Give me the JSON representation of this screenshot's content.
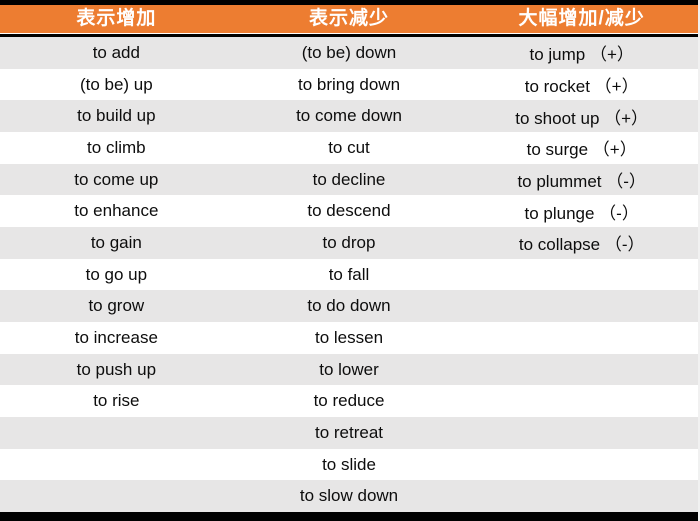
{
  "table": {
    "columns": [
      "表示增加",
      "表示减少",
      "大幅增加/减少"
    ],
    "rows": [
      [
        "to add",
        "(to be) down",
        "to jump （+）"
      ],
      [
        "(to be) up",
        "to bring down",
        "to rocket （+）"
      ],
      [
        "to build up",
        "to come down",
        "to shoot up （+）"
      ],
      [
        "to climb",
        "to cut",
        "to surge （+）"
      ],
      [
        "to come up",
        "to decline",
        "to plummet （-）"
      ],
      [
        "to enhance",
        "to descend",
        "to plunge （-）"
      ],
      [
        "to gain",
        "to drop",
        "to collapse （-）"
      ],
      [
        "to go up",
        "to fall",
        ""
      ],
      [
        "to grow",
        "to do down",
        ""
      ],
      [
        "to increase",
        "to lessen",
        ""
      ],
      [
        "to push up",
        "to lower",
        ""
      ],
      [
        "to rise",
        "to reduce",
        ""
      ],
      [
        "",
        "to retreat",
        ""
      ],
      [
        "",
        "to slide",
        ""
      ],
      [
        "",
        "to slow down",
        ""
      ]
    ],
    "colors": {
      "header_bg": "#ED7D31",
      "header_text": "#FFFFFF",
      "row_alt_bg": "#E7E6E6",
      "row_bg": "#FFFFFF",
      "frame": "#000000",
      "body_text": "#0D0D0D"
    }
  }
}
